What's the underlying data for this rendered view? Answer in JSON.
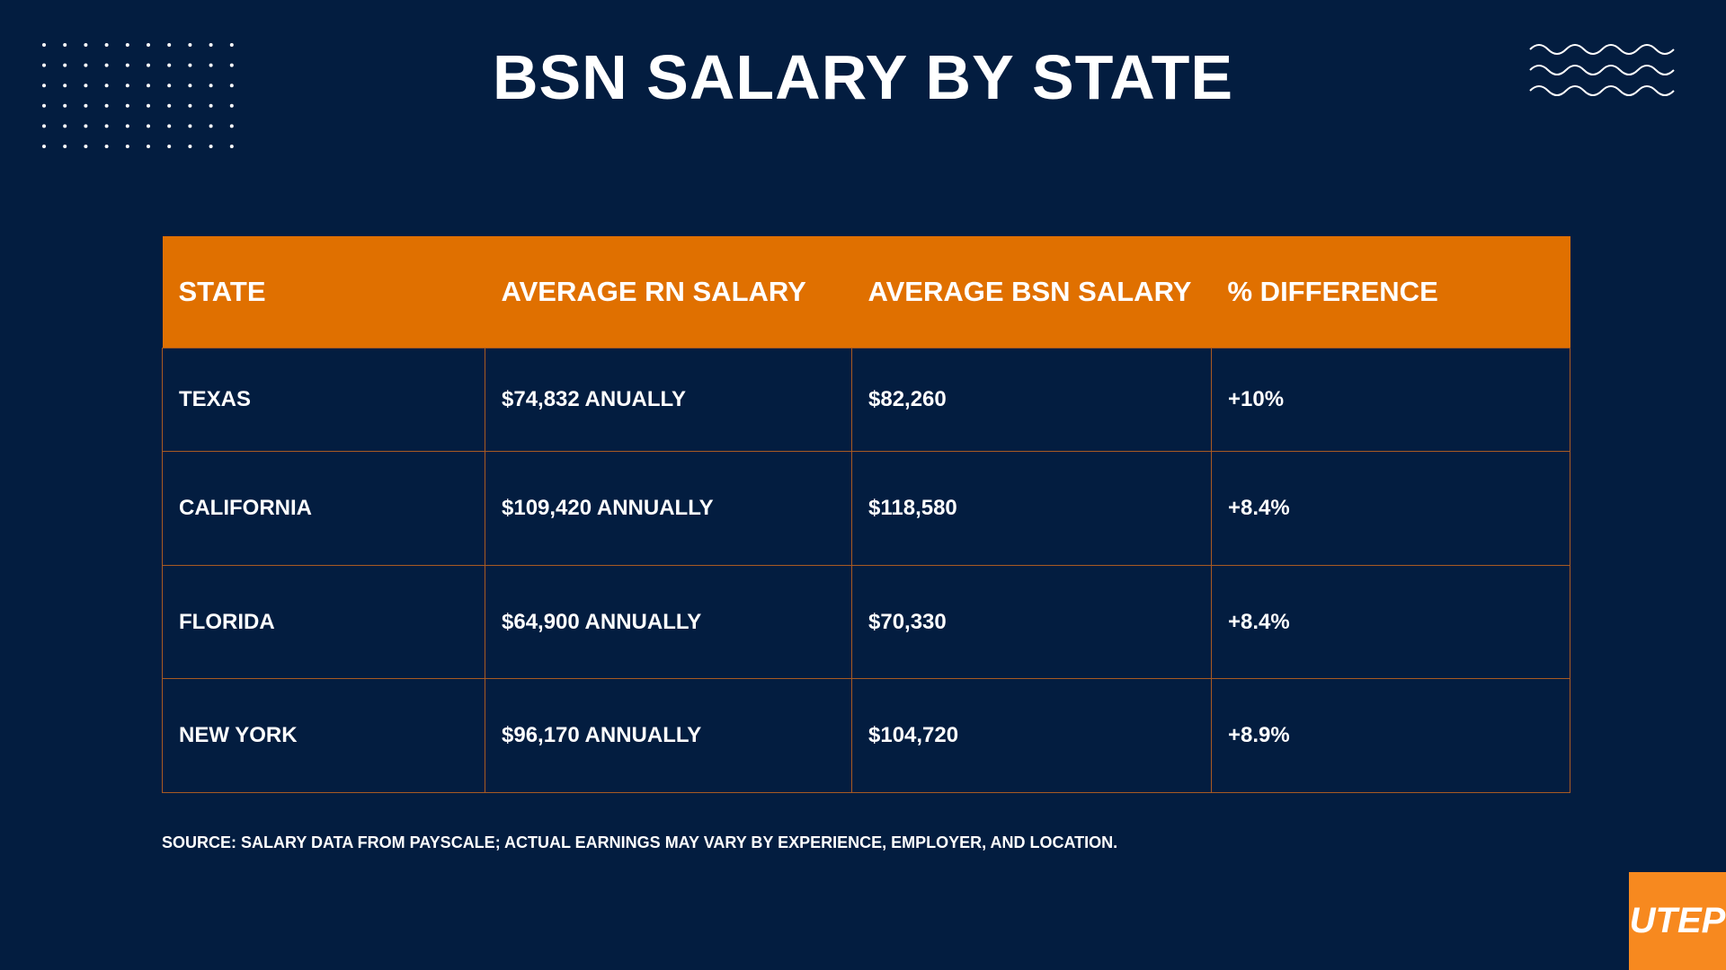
{
  "header": {
    "title": "BSN SALARY BY STATE"
  },
  "table": {
    "columns": [
      "STATE",
      "AVERAGE RN SALARY",
      "AVERAGE BSN SALARY",
      "% DIFFERENCE"
    ],
    "rows": [
      [
        "TEXAS",
        "$74,832 ANUALLY",
        "$82,260",
        "+10%"
      ],
      [
        "CALIFORNIA",
        "$109,420 ANNUALLY",
        "$118,580",
        "+8.4%"
      ],
      [
        "FLORIDA",
        "$64,900 ANNUALLY",
        "$70,330",
        "+8.4%"
      ],
      [
        "NEW YORK",
        "$96,170 ANNUALLY",
        "$104,720",
        "+8.9%"
      ]
    ]
  },
  "footer": {
    "source": "SOURCE: SALARY DATA FROM PAYSCALE; ACTUAL EARNINGS MAY VARY BY EXPERIENCE, EMPLOYER, AND LOCATION."
  },
  "logo": {
    "text": "UTEP"
  }
}
